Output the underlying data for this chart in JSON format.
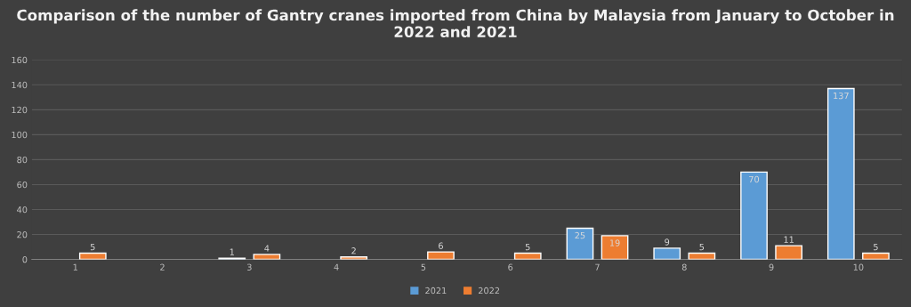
{
  "chart_data": {
    "type": "bar",
    "title": "Comparison of the number of Gantry cranes imported from China by Malaysia from January to October in 2022 and 2021",
    "categories": [
      "1",
      "2",
      "3",
      "4",
      "5",
      "6",
      "7",
      "8",
      "9",
      "10"
    ],
    "series": [
      {
        "name": "2021",
        "color": "#5b9bd5",
        "values": [
          null,
          null,
          1,
          null,
          null,
          null,
          25,
          9,
          70,
          137
        ]
      },
      {
        "name": "2022",
        "color": "#ed7d31",
        "values": [
          5,
          null,
          4,
          2,
          6,
          5,
          19,
          5,
          11,
          5
        ]
      }
    ],
    "ylim": [
      0,
      160
    ],
    "yticks": [
      0,
      20,
      40,
      60,
      80,
      100,
      120,
      140,
      160
    ],
    "grid": "y",
    "legend": "bottom",
    "data_labels": true
  }
}
